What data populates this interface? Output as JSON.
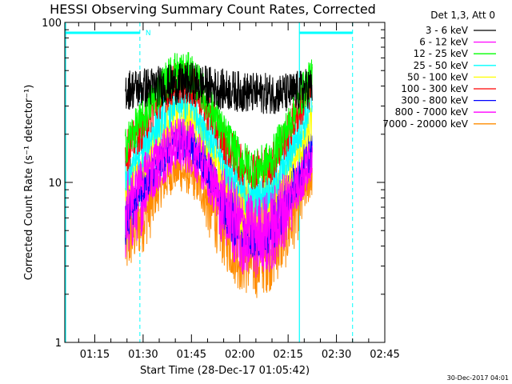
{
  "chart_data": {
    "type": "line",
    "title": "HESSI Observing Summary Count Rates, Corrected",
    "xlabel": "Start Time (28-Dec-17 01:05:42)",
    "ylabel": "Corrected Count Rate (s⁻¹ detector⁻¹)",
    "x_ticks": [
      "01:15",
      "01:30",
      "01:45",
      "02:00",
      "02:15",
      "02:30",
      "02:45"
    ],
    "x_tick_minutes": [
      75,
      90,
      105,
      120,
      135,
      150,
      165
    ],
    "xlim_minutes": [
      65.7,
      165
    ],
    "y_scale": "log",
    "ylim": [
      1,
      100
    ],
    "y_ticks": [
      "1",
      "10",
      "100"
    ],
    "y_tick_values": [
      1,
      10,
      100
    ],
    "legend_header": "Det 1,3, Att 0",
    "legend_placement": "right",
    "footer_date": "30-Dec-2017 04:01",
    "annotations": {
      "night_marker_label": "N",
      "night_bars_minutes": [
        [
          65.7,
          89
        ],
        [
          138.5,
          155
        ]
      ],
      "cyan_solid_minutes": [
        65.7,
        138.5
      ],
      "cyan_dashed_minutes": [
        89,
        155
      ]
    },
    "data_range_minutes": [
      84.5,
      142.5
    ],
    "series": [
      {
        "name": "3 - 6 keV",
        "color": "#000000",
        "x": [
          84.5,
          90,
          95,
          100,
          105,
          110,
          115,
          120,
          125,
          130,
          135,
          140,
          142.5
        ],
        "y": [
          38,
          39,
          40,
          41,
          42,
          40,
          38,
          37,
          36,
          36,
          36,
          38,
          40
        ]
      },
      {
        "name": "6 - 12 keV",
        "color": "#ff00ff",
        "x": [
          84.5,
          90,
          95,
          100,
          105,
          110,
          115,
          120,
          125,
          130,
          135,
          140,
          142.5
        ],
        "y": [
          7,
          11,
          15,
          19,
          18,
          12,
          7.5,
          5.5,
          5,
          5.5,
          8,
          12,
          15
        ]
      },
      {
        "name": "12 - 25 keV",
        "color": "#00ff00",
        "x": [
          84.5,
          90,
          95,
          100,
          105,
          110,
          115,
          120,
          125,
          130,
          135,
          140,
          142.5
        ],
        "y": [
          17,
          25,
          38,
          50,
          48,
          32,
          20,
          14,
          12,
          14,
          22,
          38,
          45
        ]
      },
      {
        "name": "25 - 50 keV",
        "color": "#00ffff",
        "x": [
          84.5,
          90,
          95,
          100,
          105,
          110,
          115,
          120,
          125,
          130,
          135,
          140,
          142.5
        ],
        "y": [
          11,
          16,
          24,
          32,
          31,
          21,
          13,
          9,
          8,
          9,
          14,
          24,
          32
        ]
      },
      {
        "name": "50 - 100 keV",
        "color": "#ffff00",
        "x": [
          84.5,
          90,
          95,
          100,
          105,
          110,
          115,
          120,
          125,
          130,
          135,
          140,
          142.5
        ],
        "y": [
          9,
          13,
          19,
          26,
          25,
          17,
          10.5,
          7.5,
          6.8,
          7.5,
          11,
          18,
          24
        ]
      },
      {
        "name": "100 - 300 keV",
        "color": "#ff0000",
        "x": [
          84.5,
          90,
          95,
          100,
          105,
          110,
          115,
          120,
          125,
          130,
          135,
          140,
          142.5
        ],
        "y": [
          15,
          22,
          33,
          42,
          41,
          28,
          18,
          13,
          12,
          13,
          20,
          32,
          40
        ]
      },
      {
        "name": "300 - 800 keV",
        "color": "#0000ff",
        "x": [
          84.5,
          90,
          95,
          100,
          105,
          110,
          115,
          120,
          125,
          130,
          135,
          140,
          142.5
        ],
        "y": [
          6.5,
          10,
          14,
          19,
          18,
          12.5,
          8,
          6,
          5.5,
          6,
          8.5,
          13,
          17
        ]
      },
      {
        "name": "800 - 7000 keV",
        "color": "#ff00ff",
        "x": [
          84.5,
          90,
          95,
          100,
          105,
          110,
          115,
          120,
          125,
          130,
          135,
          140,
          142.5
        ],
        "y": [
          5,
          8,
          12,
          16,
          15,
          10,
          6.5,
          4.5,
          4,
          4.5,
          7,
          11,
          14
        ]
      },
      {
        "name": "7000 - 20000 keV",
        "color": "#ff8c00",
        "x": [
          84.5,
          90,
          95,
          100,
          105,
          110,
          115,
          120,
          125,
          130,
          135,
          140,
          142.5
        ],
        "y": [
          4,
          6,
          9,
          12,
          11,
          7.5,
          4.8,
          3.4,
          3.1,
          3.5,
          5,
          8.5,
          11
        ]
      }
    ]
  }
}
